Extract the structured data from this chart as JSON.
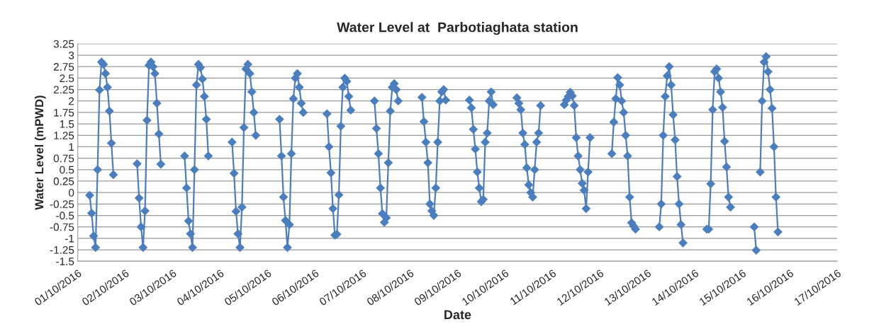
{
  "chart_data": {
    "type": "line",
    "title": "Water Level at  Parbotiaghata station",
    "xlabel": "Date",
    "ylabel": "Water Level (mPWD)",
    "xlim": [
      "2016-10-01",
      "2016-10-17"
    ],
    "xticks": [
      {
        "value": "2016-10-01",
        "label": "01/10/2016"
      },
      {
        "value": "2016-10-02",
        "label": "02/10/2016"
      },
      {
        "value": "2016-10-03",
        "label": "03/10/2016"
      },
      {
        "value": "2016-10-04",
        "label": "04/10/2016"
      },
      {
        "value": "2016-10-05",
        "label": "05/10/2016"
      },
      {
        "value": "2016-10-06",
        "label": "06/10/2016"
      },
      {
        "value": "2016-10-07",
        "label": "07/10/2016"
      },
      {
        "value": "2016-10-08",
        "label": "08/10/2016"
      },
      {
        "value": "2016-10-09",
        "label": "09/10/2016"
      },
      {
        "value": "2016-10-10",
        "label": "10/10/2016"
      },
      {
        "value": "2016-10-11",
        "label": "11/10/2016"
      },
      {
        "value": "2016-10-12",
        "label": "12/10/2016"
      },
      {
        "value": "2016-10-13",
        "label": "13/10/2016"
      },
      {
        "value": "2016-10-14",
        "label": "14/10/2016"
      },
      {
        "value": "2016-10-15",
        "label": "15/10/2016"
      },
      {
        "value": "2016-10-16",
        "label": "16/10/2016"
      },
      {
        "value": "2016-10-17",
        "label": "17/10/2016"
      }
    ],
    "ylim": [
      -1.5,
      3.25
    ],
    "yticks": [
      -1.5,
      -1.25,
      -1,
      -0.75,
      -0.5,
      -0.25,
      0,
      0.25,
      0.5,
      0.75,
      1,
      1.25,
      1.5,
      1.75,
      2,
      2.25,
      2.5,
      2.75,
      3,
      3.25
    ],
    "grid": "y",
    "marker": "diamond",
    "line_style": "solid",
    "series": [
      {
        "color": "#4a7ebf",
        "x": [
          "2016-10-01T06:00",
          "2016-10-01T07:00",
          "2016-10-01T08:00",
          "2016-10-01T09:00",
          "2016-10-01T10:00",
          "2016-10-01T11:00",
          "2016-10-01T12:00",
          "2016-10-01T13:00",
          "2016-10-01T14:00",
          "2016-10-01T15:00",
          "2016-10-01T16:00",
          "2016-10-01T17:00",
          "2016-10-01T18:00",
          "2016-10-02T00:00",
          "2016-10-02T06:00",
          "2016-10-02T07:00",
          "2016-10-02T08:00",
          "2016-10-02T09:00",
          "2016-10-02T10:00",
          "2016-10-02T11:00",
          "2016-10-02T12:00",
          "2016-10-02T13:00",
          "2016-10-02T14:00",
          "2016-10-02T15:00",
          "2016-10-02T16:00",
          "2016-10-02T17:00",
          "2016-10-02T18:00",
          "2016-10-03T00:00",
          "2016-10-03T06:00",
          "2016-10-03T07:00",
          "2016-10-03T08:00",
          "2016-10-03T09:00",
          "2016-10-03T10:00",
          "2016-10-03T11:00",
          "2016-10-03T12:00",
          "2016-10-03T13:00",
          "2016-10-03T14:00",
          "2016-10-03T15:00",
          "2016-10-03T16:00",
          "2016-10-03T17:00",
          "2016-10-03T18:00",
          "2016-10-04T00:00",
          "2016-10-04T06:00",
          "2016-10-04T07:00",
          "2016-10-04T08:00",
          "2016-10-04T09:00",
          "2016-10-04T10:00",
          "2016-10-04T11:00",
          "2016-10-04T12:00",
          "2016-10-04T13:00",
          "2016-10-04T14:00",
          "2016-10-04T15:00",
          "2016-10-04T16:00",
          "2016-10-04T17:00",
          "2016-10-04T18:00",
          "2016-10-05T00:00",
          "2016-10-05T06:00",
          "2016-10-05T07:00",
          "2016-10-05T08:00",
          "2016-10-05T09:00",
          "2016-10-05T10:00",
          "2016-10-05T11:00",
          "2016-10-05T12:00",
          "2016-10-05T13:00",
          "2016-10-05T14:00",
          "2016-10-05T15:00",
          "2016-10-05T16:00",
          "2016-10-05T17:00",
          "2016-10-05T18:00",
          "2016-10-06T00:00",
          "2016-10-06T06:00",
          "2016-10-06T07:00",
          "2016-10-06T08:00",
          "2016-10-06T09:00",
          "2016-10-06T10:00",
          "2016-10-06T11:00",
          "2016-10-06T12:00",
          "2016-10-06T13:00",
          "2016-10-06T14:00",
          "2016-10-06T15:00",
          "2016-10-06T16:00",
          "2016-10-06T17:00",
          "2016-10-06T18:00",
          "2016-10-07T00:00",
          "2016-10-07T06:00",
          "2016-10-07T07:00",
          "2016-10-07T08:00",
          "2016-10-07T09:00",
          "2016-10-07T10:00",
          "2016-10-07T11:00",
          "2016-10-07T12:00",
          "2016-10-07T13:00",
          "2016-10-07T14:00",
          "2016-10-07T15:00",
          "2016-10-07T16:00",
          "2016-10-07T17:00",
          "2016-10-07T18:00",
          "2016-10-08T00:00",
          "2016-10-08T06:00",
          "2016-10-08T07:00",
          "2016-10-08T08:00",
          "2016-10-08T09:00",
          "2016-10-08T10:00",
          "2016-10-08T11:00",
          "2016-10-08T12:00",
          "2016-10-08T13:00",
          "2016-10-08T14:00",
          "2016-10-08T15:00",
          "2016-10-08T16:00",
          "2016-10-08T17:00",
          "2016-10-08T18:00",
          "2016-10-09T00:00",
          "2016-10-09T06:00",
          "2016-10-09T07:00",
          "2016-10-09T08:00",
          "2016-10-09T09:00",
          "2016-10-09T10:00",
          "2016-10-09T11:00",
          "2016-10-09T12:00",
          "2016-10-09T13:00",
          "2016-10-09T14:00",
          "2016-10-09T15:00",
          "2016-10-09T16:00",
          "2016-10-09T17:00",
          "2016-10-09T18:00",
          "2016-10-10T00:00",
          "2016-10-10T06:00",
          "2016-10-10T07:00",
          "2016-10-10T08:00",
          "2016-10-10T09:00",
          "2016-10-10T10:00",
          "2016-10-10T11:00",
          "2016-10-10T12:00",
          "2016-10-10T13:00",
          "2016-10-10T14:00",
          "2016-10-10T15:00",
          "2016-10-10T16:00",
          "2016-10-10T17:00",
          "2016-10-10T18:00",
          "2016-10-11T00:00",
          "2016-10-11T06:00",
          "2016-10-11T07:00",
          "2016-10-11T08:00",
          "2016-10-11T09:00",
          "2016-10-11T10:00",
          "2016-10-11T11:00",
          "2016-10-11T12:00",
          "2016-10-11T13:00",
          "2016-10-11T14:00",
          "2016-10-11T15:00",
          "2016-10-11T16:00",
          "2016-10-11T17:00",
          "2016-10-11T18:00",
          "2016-10-11T19:00",
          "2016-10-12T00:00",
          "2016-10-12T06:00",
          "2016-10-12T07:00",
          "2016-10-12T08:00",
          "2016-10-12T09:00",
          "2016-10-12T10:00",
          "2016-10-12T11:00",
          "2016-10-12T12:00",
          "2016-10-12T13:00",
          "2016-10-12T14:00",
          "2016-10-12T15:00",
          "2016-10-12T16:00",
          "2016-10-12T17:00",
          "2016-10-12T18:00",
          "2016-10-13T00:00",
          "2016-10-13T06:00",
          "2016-10-13T07:00",
          "2016-10-13T08:00",
          "2016-10-13T09:00",
          "2016-10-13T10:00",
          "2016-10-13T11:00",
          "2016-10-13T12:00",
          "2016-10-13T13:00",
          "2016-10-13T14:00",
          "2016-10-13T15:00",
          "2016-10-13T16:00",
          "2016-10-13T17:00",
          "2016-10-13T18:00",
          "2016-10-14T00:00",
          "2016-10-14T06:00",
          "2016-10-14T07:00",
          "2016-10-14T08:00",
          "2016-10-14T09:00",
          "2016-10-14T10:00",
          "2016-10-14T11:00",
          "2016-10-14T12:00",
          "2016-10-14T13:00",
          "2016-10-14T14:00",
          "2016-10-14T15:00",
          "2016-10-14T16:00",
          "2016-10-14T17:00",
          "2016-10-14T18:00",
          "2016-10-15T00:00",
          "2016-10-15T06:00",
          "2016-10-15T07:00",
          "2016-10-15T08:00",
          "2016-10-15T09:00",
          "2016-10-15T10:00",
          "2016-10-15T11:00",
          "2016-10-15T12:00",
          "2016-10-15T13:00",
          "2016-10-15T14:00",
          "2016-10-15T15:00",
          "2016-10-15T16:00",
          "2016-10-15T17:00",
          "2016-10-15T18:00"
        ],
        "values": [
          -0.06,
          -0.45,
          -0.95,
          -1.2,
          0.5,
          2.24,
          2.85,
          2.8,
          2.6,
          2.3,
          1.78,
          1.08,
          0.39,
          null,
          0.63,
          -0.12,
          -0.75,
          -1.2,
          -0.4,
          1.58,
          2.78,
          2.85,
          2.75,
          2.6,
          1.95,
          1.28,
          0.62,
          null,
          0.8,
          0.1,
          -0.62,
          -0.9,
          -1.2,
          0.5,
          2.35,
          2.8,
          2.73,
          2.48,
          2.1,
          1.6,
          0.8,
          null,
          1.1,
          0.42,
          -0.41,
          -0.9,
          -1.2,
          -0.32,
          1.42,
          2.7,
          2.8,
          2.6,
          2.2,
          1.75,
          1.25,
          null,
          1.6,
          0.8,
          -0.1,
          -0.61,
          -1.2,
          -0.7,
          0.85,
          2.05,
          2.5,
          2.6,
          2.3,
          1.95,
          1.75,
          null,
          1.72,
          1.0,
          0.43,
          -0.35,
          -0.93,
          -0.91,
          -0.05,
          1.45,
          2.3,
          2.5,
          2.43,
          2.1,
          1.8,
          null,
          2.0,
          1.4,
          0.85,
          0.1,
          -0.46,
          -0.65,
          -0.55,
          0.65,
          1.78,
          2.3,
          2.38,
          2.25,
          2.0,
          null,
          2.08,
          1.55,
          1.1,
          0.65,
          -0.25,
          -0.4,
          -0.5,
          0.1,
          1.1,
          2.0,
          2.2,
          2.25,
          2.02,
          null,
          2.02,
          1.85,
          1.38,
          0.95,
          0.45,
          0.1,
          -0.2,
          -0.15,
          1.1,
          1.3,
          2.0,
          2.2,
          1.92,
          null,
          2.07,
          1.95,
          1.81,
          1.3,
          1.05,
          0.54,
          0.17,
          0.0,
          -0.1,
          0.5,
          1.1,
          1.3,
          1.9,
          null,
          1.92,
          2.02,
          2.1,
          2.19,
          2.11,
          1.9,
          1.2,
          0.8,
          0.5,
          0.2,
          0.05,
          -0.35,
          0.45,
          1.2,
          null,
          0.85,
          1.54,
          2.05,
          2.51,
          2.35,
          2.0,
          1.75,
          1.25,
          0.8,
          -0.1,
          -0.66,
          -0.73,
          -0.8,
          null,
          -0.75,
          -0.25,
          1.25,
          2.1,
          2.55,
          2.75,
          2.35,
          1.7,
          1.15,
          0.35,
          -0.25,
          -0.7,
          -1.1,
          null,
          -0.8,
          -0.8,
          0.19,
          1.81,
          2.64,
          2.7,
          2.5,
          2.2,
          1.86,
          1.12,
          0.56,
          -0.1,
          -0.32,
          null,
          -0.75,
          -1.26,
          null,
          0.45,
          2.0,
          2.85,
          2.97,
          2.64,
          2.25,
          1.84,
          1.0,
          -0.1,
          -0.86
        ]
      }
    ]
  }
}
